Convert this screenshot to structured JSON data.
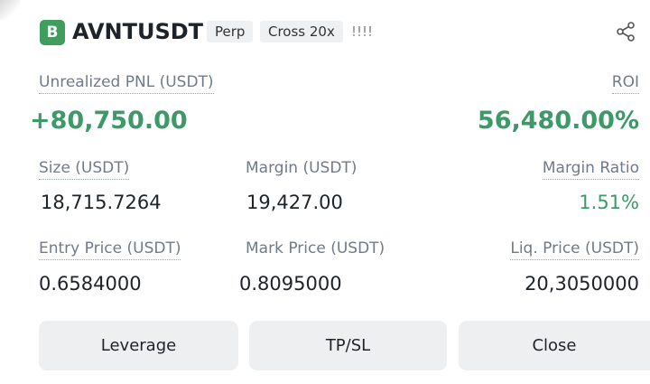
{
  "header": {
    "badge": "B",
    "symbol": "AVNTUSDT",
    "tags": [
      "Perp",
      "Cross 20x"
    ],
    "alert": "!!!!"
  },
  "pnl": {
    "label": "Unrealized PNL (USDT)",
    "value": "+80,750.00"
  },
  "roi": {
    "label": "ROI",
    "value": "56,480.00%"
  },
  "fields": [
    {
      "label": "Size (USDT)",
      "value": "18,715.7264"
    },
    {
      "label": "Margin (USDT)",
      "value": "19,427.00"
    },
    {
      "label": "Margin Ratio",
      "value": "1.51%"
    },
    {
      "label": "Entry Price (USDT)",
      "value": "0.6584000"
    },
    {
      "label": "Mark Price (USDT)",
      "value": "0.8095000"
    },
    {
      "label": "Liq. Price (USDT)",
      "value": "20,3050000"
    }
  ],
  "buttons": [
    "Leverage",
    "TP/SL",
    "Close"
  ]
}
